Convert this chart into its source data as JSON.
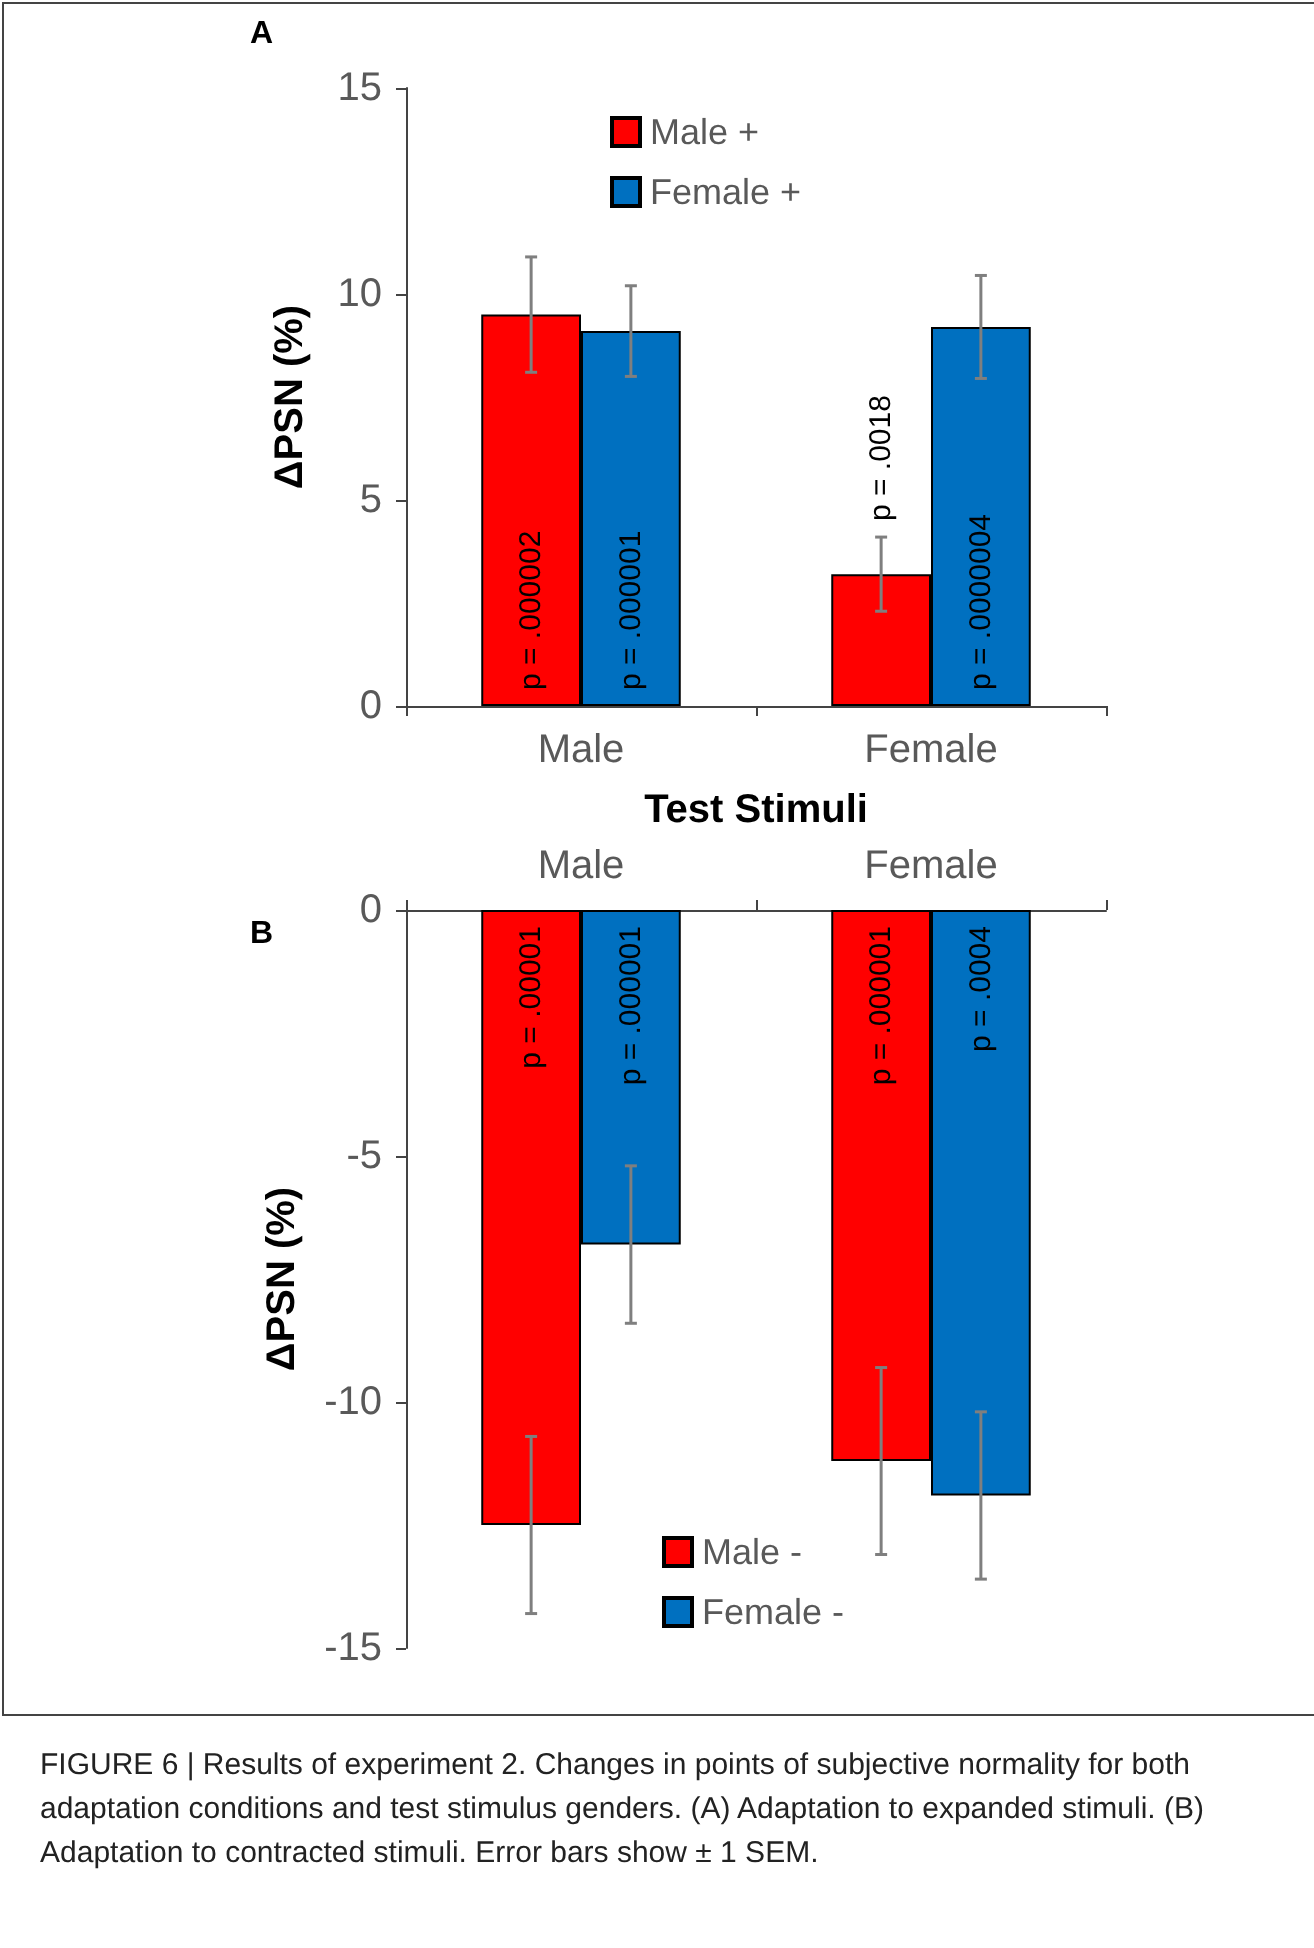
{
  "chart_data": [
    {
      "type": "bar",
      "title": "A",
      "xlabel": "Test Stimuli",
      "ylabel": "ΔPSN (%)",
      "categories": [
        "Male",
        "Female"
      ],
      "series": [
        {
          "name": "Male +",
          "color": "#ff0000",
          "values": [
            9.5,
            3.2
          ],
          "errors": [
            1.4,
            0.9
          ]
        },
        {
          "name": "Female +",
          "color": "#0070c0",
          "values": [
            9.1,
            9.2
          ],
          "errors": [
            1.1,
            1.25
          ]
        }
      ],
      "ylim": [
        0,
        15
      ],
      "yticks": [
        0,
        5,
        10,
        15
      ],
      "grid": false,
      "legend": "top",
      "annotations": [
        "p = .000002",
        "p = .000001",
        "p = .0018",
        "p = .0000004"
      ]
    },
    {
      "type": "bar",
      "title": "B",
      "ylabel": "ΔPSN (%)",
      "categories": [
        "Male",
        "Female"
      ],
      "series": [
        {
          "name": "Male -",
          "color": "#ff0000",
          "values": [
            -12.5,
            -11.2
          ],
          "errors": [
            1.8,
            1.9
          ]
        },
        {
          "name": "Female -",
          "color": "#0070c0",
          "values": [
            -6.8,
            -11.9
          ],
          "errors": [
            1.6,
            1.7
          ]
        }
      ],
      "ylim": [
        -15,
        0
      ],
      "yticks": [
        -15,
        -10,
        -5,
        0
      ],
      "grid": false,
      "legend": "bottom",
      "annotations": [
        "p = .00001",
        "p = .000001",
        "p = .000001",
        "p = .0004",
        "FIGURE 6 | Results of experiment 2. Changes in points of subjective normality for both adaptation conditions and test stimulus genders. (A) Adaptation to expanded stimuli. (B) Adaptation to contracted stimuli. Error bars show ± 1 SEM."
      ]
    }
  ]
}
